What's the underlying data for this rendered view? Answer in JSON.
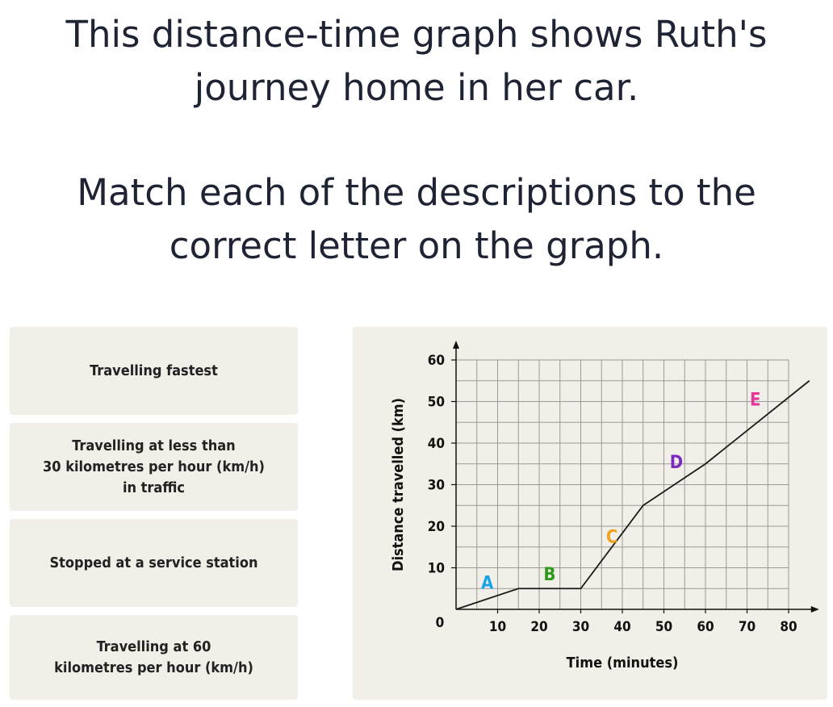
{
  "question": {
    "line1": "This distance-time graph shows Ruth's\njourney home in her car.",
    "line2": "Match each of the descriptions to the\ncorrect letter on the graph."
  },
  "cards": [
    {
      "label": "Travelling fastest"
    },
    {
      "label": "Travelling at less than\n30 kilometres per hour (km/h)\nin traffic"
    },
    {
      "label": "Stopped at a service station"
    },
    {
      "label": "Travelling at 60\nkilometres per hour (km/h)"
    }
  ],
  "chart_data": {
    "type": "line",
    "xlabel": "Time (minutes)",
    "ylabel": "Distance travelled (km)",
    "xlim": [
      0,
      85
    ],
    "ylim": [
      0,
      60
    ],
    "x_ticks": [
      10,
      20,
      30,
      40,
      50,
      60,
      70,
      80
    ],
    "y_ticks": [
      0,
      10,
      20,
      30,
      40,
      50,
      60
    ],
    "grid": true,
    "series": [
      {
        "x": [
          0,
          15,
          30,
          45,
          60,
          85
        ],
        "y": [
          0,
          5,
          5,
          25,
          35,
          55
        ]
      }
    ],
    "annotations": [
      {
        "text": "A",
        "x": 7.5,
        "y": 5,
        "color": "#1aa3e8"
      },
      {
        "text": "B",
        "x": 22.5,
        "y": 7,
        "color": "#2e9a1e"
      },
      {
        "text": "C",
        "x": 37.5,
        "y": 16,
        "color": "#f0a020"
      },
      {
        "text": "D",
        "x": 53,
        "y": 34,
        "color": "#7b2bbf"
      },
      {
        "text": "E",
        "x": 72,
        "y": 49,
        "color": "#e8359a"
      }
    ]
  }
}
